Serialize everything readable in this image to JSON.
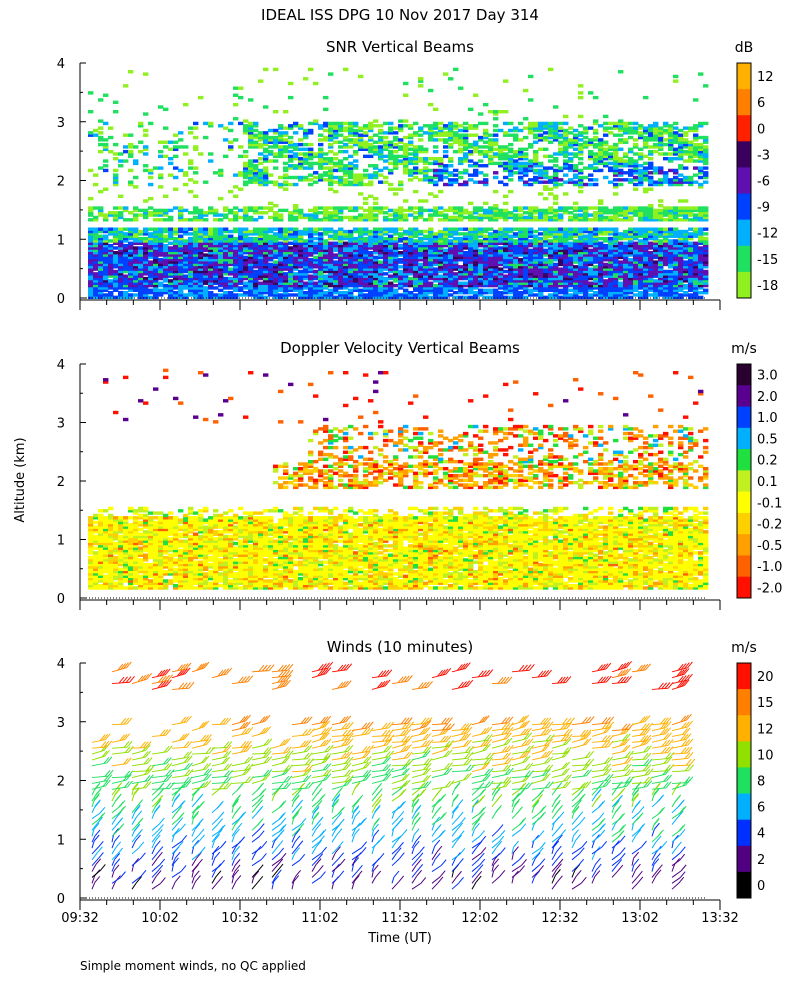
{
  "title": "IDEAL ISS DPG  10 Nov 2017 Day 314",
  "ylabel": "Altitude (km)",
  "xlabel": "Time (UT)",
  "footnote": "Simple moment winds, no QC applied",
  "time_ticks": [
    "09:32",
    "10:02",
    "10:32",
    "11:02",
    "11:32",
    "12:02",
    "12:32",
    "13:02",
    "13:32"
  ],
  "chart_data": [
    {
      "type": "heatmap",
      "title": "SNR Vertical Beams",
      "units": "dB",
      "xlabel": "Time (UT)",
      "ylabel": "Altitude (km)",
      "x_range": [
        "09:32",
        "13:32"
      ],
      "ylim": [
        0,
        4
      ],
      "y_ticks": [
        "0",
        "1",
        "2",
        "3",
        "4"
      ],
      "colorbar": {
        "labels": [
          "12",
          "6",
          "0",
          "-3",
          "-6",
          "-9",
          "-12",
          "-15",
          "-18"
        ],
        "colors": [
          "#FFB000",
          "#FF8000",
          "#FF2000",
          "#3A0060",
          "#6010B0",
          "#0040FF",
          "#00B0FF",
          "#20E060",
          "#90F020"
        ]
      },
      "layers": [
        {
          "desc": "low-level strong echo",
          "alt_km": [
            0.2,
            0.9
          ],
          "snr_db": [
            -12,
            -3
          ]
        },
        {
          "desc": "near-surface layer",
          "alt_km": [
            0.0,
            1.2
          ],
          "snr_db": [
            -15,
            -9
          ]
        },
        {
          "desc": "band near 1.4 km",
          "alt_km": [
            1.3,
            1.55
          ],
          "snr_db": [
            -18,
            -15
          ]
        },
        {
          "desc": "elevated layer",
          "alt_km": [
            1.9,
            3.0
          ],
          "snr_db": [
            -18,
            -9
          ]
        }
      ]
    },
    {
      "type": "heatmap",
      "title": "Doppler Velocity Vertical Beams",
      "units": "m/s",
      "xlabel": "Time (UT)",
      "ylabel": "Altitude (km)",
      "x_range": [
        "09:32",
        "13:32"
      ],
      "ylim": [
        0,
        4
      ],
      "y_ticks": [
        "0",
        "1",
        "2",
        "3",
        "4"
      ],
      "colorbar": {
        "labels": [
          "3.0",
          "2.0",
          "1.0",
          "0.5",
          "0.2",
          "0.1",
          "-0.1",
          "-0.2",
          "-0.5",
          "-1.0",
          "-2.0"
        ],
        "colors": [
          "#2A0030",
          "#5A0090",
          "#0040FF",
          "#00B0FF",
          "#20E040",
          "#C0F020",
          "#FFFF00",
          "#FFD000",
          "#FFA000",
          "#FF6000",
          "#FF1000"
        ]
      },
      "layers": [
        {
          "desc": "boundary layer",
          "alt_km": [
            0.2,
            1.4
          ],
          "velocity_ms": [
            -0.2,
            0.1
          ]
        },
        {
          "desc": "elevated layer",
          "alt_km": [
            1.9,
            3.0
          ],
          "velocity_ms": [
            -2.0,
            0.5
          ]
        }
      ]
    },
    {
      "type": "wind_barbs",
      "title": "Winds (10 minutes)",
      "units": "m/s",
      "xlabel": "Time (UT)",
      "ylabel": "Altitude (km)",
      "x_range": [
        "09:32",
        "13:32"
      ],
      "ylim": [
        0,
        4
      ],
      "y_ticks": [
        "0",
        "1",
        "2",
        "3",
        "4"
      ],
      "colorbar": {
        "labels": [
          "20",
          "15",
          "12",
          "10",
          "8",
          "6",
          "4",
          "2",
          "0"
        ],
        "colors": [
          "#FF1000",
          "#FF8000",
          "#FFB000",
          "#90E000",
          "#20E060",
          "#00B0FF",
          "#0030FF",
          "#500080",
          "#000000"
        ]
      },
      "profile": [
        {
          "alt_km": 0.3,
          "speed_ms": 3
        },
        {
          "alt_km": 1.0,
          "speed_ms": 7
        },
        {
          "alt_km": 1.5,
          "speed_ms": 9
        },
        {
          "alt_km": 2.0,
          "speed_ms": 10
        },
        {
          "alt_km": 2.5,
          "speed_ms": 12
        },
        {
          "alt_km": 3.0,
          "speed_ms": 15
        },
        {
          "alt_km": 3.6,
          "speed_ms": 20
        }
      ]
    }
  ]
}
